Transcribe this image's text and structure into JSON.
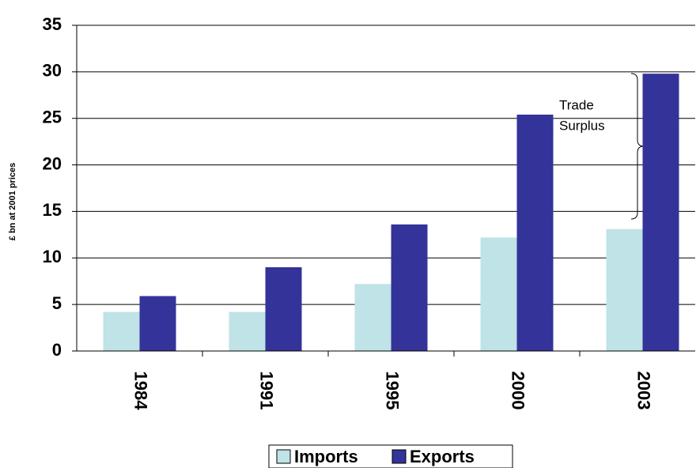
{
  "chart_data": {
    "type": "bar",
    "y_label": "£ bn at 2001 prices",
    "categories": [
      "1984",
      "1991",
      "1995",
      "2000",
      "2003"
    ],
    "series": [
      {
        "name": "Imports",
        "color": "#bfe3e6",
        "values": [
          4.2,
          4.2,
          7.2,
          12.2,
          13.1
        ]
      },
      {
        "name": "Exports",
        "color": "#333399",
        "values": [
          5.9,
          9.0,
          13.6,
          25.4,
          29.8
        ]
      }
    ],
    "ylim": [
      0,
      35
    ],
    "yticks": [
      0,
      5,
      10,
      15,
      20,
      25,
      30,
      35
    ],
    "grid": true,
    "annotations": [
      "Trade",
      "Surplus"
    ],
    "legend": "bottom"
  }
}
